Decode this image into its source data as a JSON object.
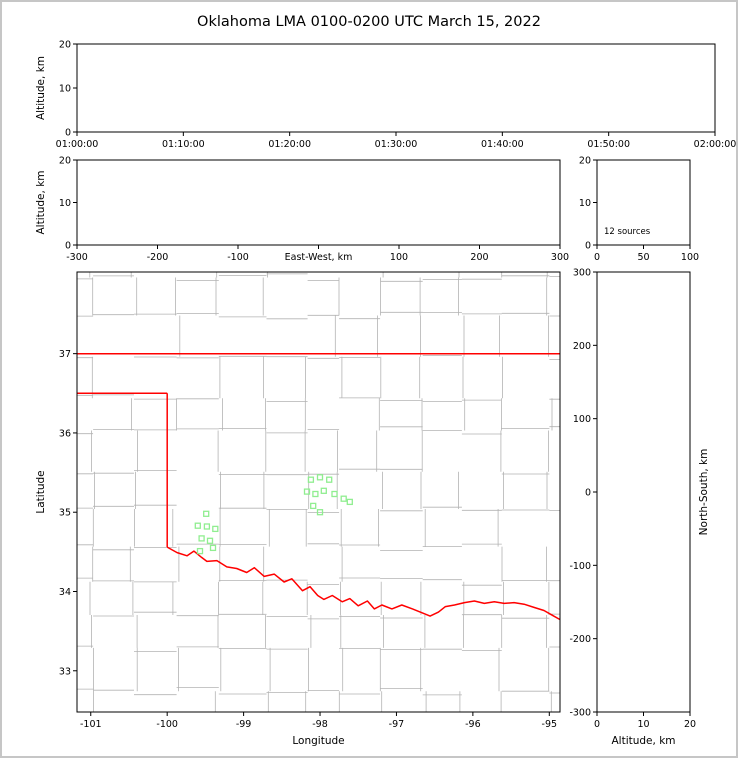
{
  "title": "Oklahoma LMA 0100-0200 UTC March 15, 2022",
  "colors": {
    "axis": "#000000",
    "county_lines": "#b3b3b3",
    "state_border": "#ff0000",
    "stations": "#90ee90",
    "frame": "#c6c6c6",
    "background": "#ffffff"
  },
  "chart_data": [
    {
      "id": "time_height",
      "type": "scatter",
      "ylabel": "Altitude, km",
      "xtick_labels": [
        "01:00:00",
        "01:10:00",
        "01:20:00",
        "01:30:00",
        "01:40:00",
        "01:50:00",
        "02:00:00"
      ],
      "yticks": [
        0,
        10,
        20
      ],
      "ylim": [
        0,
        20
      ],
      "points": []
    },
    {
      "id": "ew_height",
      "type": "scatter",
      "xlabel": "East-West, km",
      "xlabel_inline_at_zero": true,
      "ylabel": "Altitude, km",
      "xticks": [
        -300,
        -200,
        -100,
        0,
        100,
        200,
        300
      ],
      "xlim": [
        -300,
        300
      ],
      "yticks": [
        0,
        10,
        20
      ],
      "ylim": [
        0,
        20
      ],
      "points": []
    },
    {
      "id": "altitude_histogram",
      "type": "scatter",
      "xticks": [
        0,
        50,
        100
      ],
      "xlim": [
        0,
        100
      ],
      "yticks": [
        0,
        10,
        20
      ],
      "ylim": [
        0,
        20
      ],
      "annotation": "12 sources",
      "points": []
    },
    {
      "id": "plan_view_map",
      "type": "scatter",
      "xlabel": "Longitude",
      "ylabel": "Latitude",
      "xticks": [
        -101,
        -100,
        -99,
        -98,
        -97,
        -96,
        -95
      ],
      "xlim": [
        -101.18,
        -94.86
      ],
      "yticks": [
        33,
        34,
        35,
        36,
        37
      ],
      "ylim": [
        32.48,
        38.03
      ],
      "state_boundary": {
        "north_border_lat": 37,
        "panhandle_south": [
          [
            -101.18,
            36.5
          ],
          [
            -100,
            36.5
          ]
        ],
        "west_border": [
          [
            -100,
            36.5
          ],
          [
            -100,
            34.56
          ]
        ],
        "red_river": [
          [
            -100.0,
            34.56
          ],
          [
            -99.87,
            34.49
          ],
          [
            -99.74,
            34.45
          ],
          [
            -99.65,
            34.51
          ],
          [
            -99.55,
            34.43
          ],
          [
            -99.48,
            34.38
          ],
          [
            -99.35,
            34.39
          ],
          [
            -99.22,
            34.31
          ],
          [
            -99.09,
            34.29
          ],
          [
            -98.96,
            34.24
          ],
          [
            -98.86,
            34.3
          ],
          [
            -98.73,
            34.19
          ],
          [
            -98.6,
            34.22
          ],
          [
            -98.47,
            34.12
          ],
          [
            -98.37,
            34.16
          ],
          [
            -98.23,
            34.01
          ],
          [
            -98.13,
            34.06
          ],
          [
            -98.03,
            33.95
          ],
          [
            -97.95,
            33.9
          ],
          [
            -97.84,
            33.95
          ],
          [
            -97.71,
            33.87
          ],
          [
            -97.61,
            33.91
          ],
          [
            -97.5,
            33.82
          ],
          [
            -97.38,
            33.88
          ],
          [
            -97.29,
            33.78
          ],
          [
            -97.19,
            33.83
          ],
          [
            -97.06,
            33.78
          ],
          [
            -96.93,
            33.83
          ],
          [
            -96.79,
            33.78
          ],
          [
            -96.66,
            33.73
          ],
          [
            -96.56,
            33.69
          ],
          [
            -96.45,
            33.74
          ],
          [
            -96.36,
            33.81
          ],
          [
            -96.24,
            33.83
          ],
          [
            -96.11,
            33.86
          ],
          [
            -95.98,
            33.88
          ],
          [
            -95.85,
            33.85
          ],
          [
            -95.72,
            33.87
          ],
          [
            -95.59,
            33.85
          ],
          [
            -95.46,
            33.86
          ],
          [
            -95.33,
            33.84
          ],
          [
            -95.2,
            33.8
          ],
          [
            -95.07,
            33.76
          ],
          [
            -94.96,
            33.7
          ],
          [
            -94.85,
            33.64
          ]
        ]
      },
      "stations": [
        [
          -99.49,
          34.98
        ],
        [
          -99.6,
          34.83
        ],
        [
          -99.48,
          34.82
        ],
        [
          -99.37,
          34.79
        ],
        [
          -99.55,
          34.67
        ],
        [
          -99.44,
          34.64
        ],
        [
          -99.57,
          34.51
        ],
        [
          -99.4,
          34.55
        ],
        [
          -98.12,
          35.41
        ],
        [
          -98.0,
          35.44
        ],
        [
          -97.88,
          35.41
        ],
        [
          -98.17,
          35.26
        ],
        [
          -98.06,
          35.23
        ],
        [
          -97.95,
          35.27
        ],
        [
          -97.81,
          35.23
        ],
        [
          -97.69,
          35.17
        ],
        [
          -97.61,
          35.13
        ],
        [
          -98.09,
          35.08
        ],
        [
          -98.0,
          35.0
        ]
      ],
      "county_grid": {
        "lon_range": [
          -101.5,
          -94.6
        ],
        "lat_range": [
          32.2,
          38.3
        ],
        "cell_size_deg": 0.5
      }
    },
    {
      "id": "ns_height",
      "type": "scatter",
      "xlabel": "Altitude, km",
      "ylabel": "North-South, km",
      "ylabel_side": "right",
      "xticks": [
        0,
        10,
        20
      ],
      "xlim": [
        0,
        20
      ],
      "yticks": [
        -300,
        -200,
        -100,
        0,
        100,
        200,
        300
      ],
      "ylim": [
        -300,
        300
      ],
      "points": []
    }
  ]
}
